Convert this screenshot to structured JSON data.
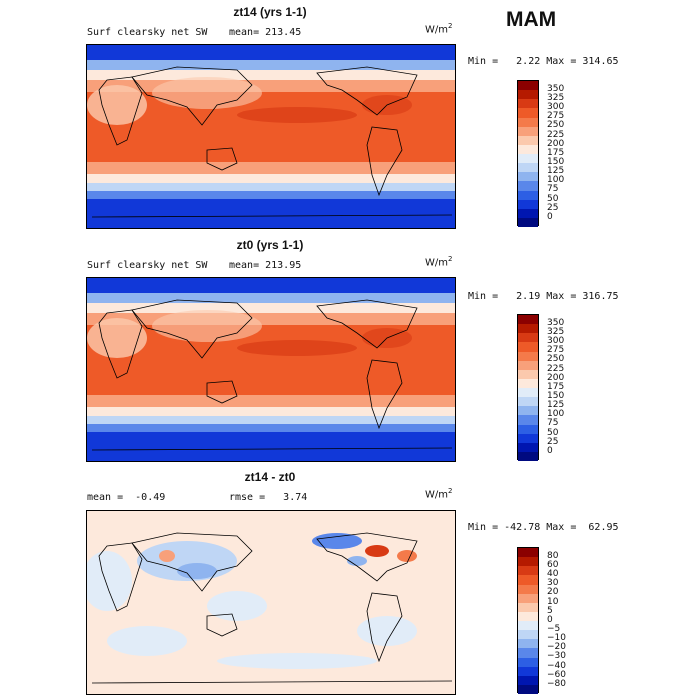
{
  "season": "MAM",
  "panels": [
    {
      "title": "zt14 (yrs 1-1)",
      "variable": "Surf clearsky net SW",
      "stat": "mean= 213.45",
      "units_base": "W/m",
      "units_exp": "2",
      "range_text": "Min =   2.22 Max = 314.65",
      "levels": [
        "350",
        "325",
        "300",
        "275",
        "250",
        "225",
        "200",
        "175",
        "150",
        "125",
        "100",
        "75",
        "50",
        "25",
        "0"
      ],
      "colors": [
        "#8b0000",
        "#b51a00",
        "#d83a14",
        "#ee5a28",
        "#f47a4a",
        "#f8a07a",
        "#fbc9ad",
        "#fde9dc",
        "#e1ecf8",
        "#bfd6f5",
        "#8fb4ef",
        "#5a87ea",
        "#2d5fe4",
        "#1138d8",
        "#0016b0",
        "#000a80"
      ]
    },
    {
      "title": "zt0 (yrs 1-1)",
      "variable": "Surf clearsky net SW",
      "stat": "mean= 213.95",
      "units_base": "W/m",
      "units_exp": "2",
      "range_text": "Min =   2.19 Max = 316.75",
      "levels": [
        "350",
        "325",
        "300",
        "275",
        "250",
        "225",
        "200",
        "175",
        "150",
        "125",
        "100",
        "75",
        "50",
        "25",
        "0"
      ],
      "colors": [
        "#8b0000",
        "#b51a00",
        "#d83a14",
        "#ee5a28",
        "#f47a4a",
        "#f8a07a",
        "#fbc9ad",
        "#fde9dc",
        "#e1ecf8",
        "#bfd6f5",
        "#8fb4ef",
        "#5a87ea",
        "#2d5fe4",
        "#1138d8",
        "#0016b0",
        "#000a80"
      ]
    },
    {
      "title": "zt14 - zt0",
      "stat_left": "mean =  -0.49",
      "stat_right": "rmse =   3.74",
      "units_base": "W/m",
      "units_exp": "2",
      "range_text": "Min = -42.78 Max =  62.95",
      "levels": [
        "80",
        "60",
        "40",
        "30",
        "20",
        "10",
        "5",
        "0",
        "−5",
        "−10",
        "−20",
        "−30",
        "−40",
        "−60",
        "−80"
      ],
      "colors": [
        "#8b0000",
        "#b51a00",
        "#d83a14",
        "#ee5a28",
        "#f47a4a",
        "#f8a07a",
        "#fbc9ad",
        "#fde9dc",
        "#e1ecf8",
        "#bfd6f5",
        "#8fb4ef",
        "#5a87ea",
        "#2d5fe4",
        "#1138d8",
        "#0016b0",
        "#000a80"
      ]
    }
  ]
}
